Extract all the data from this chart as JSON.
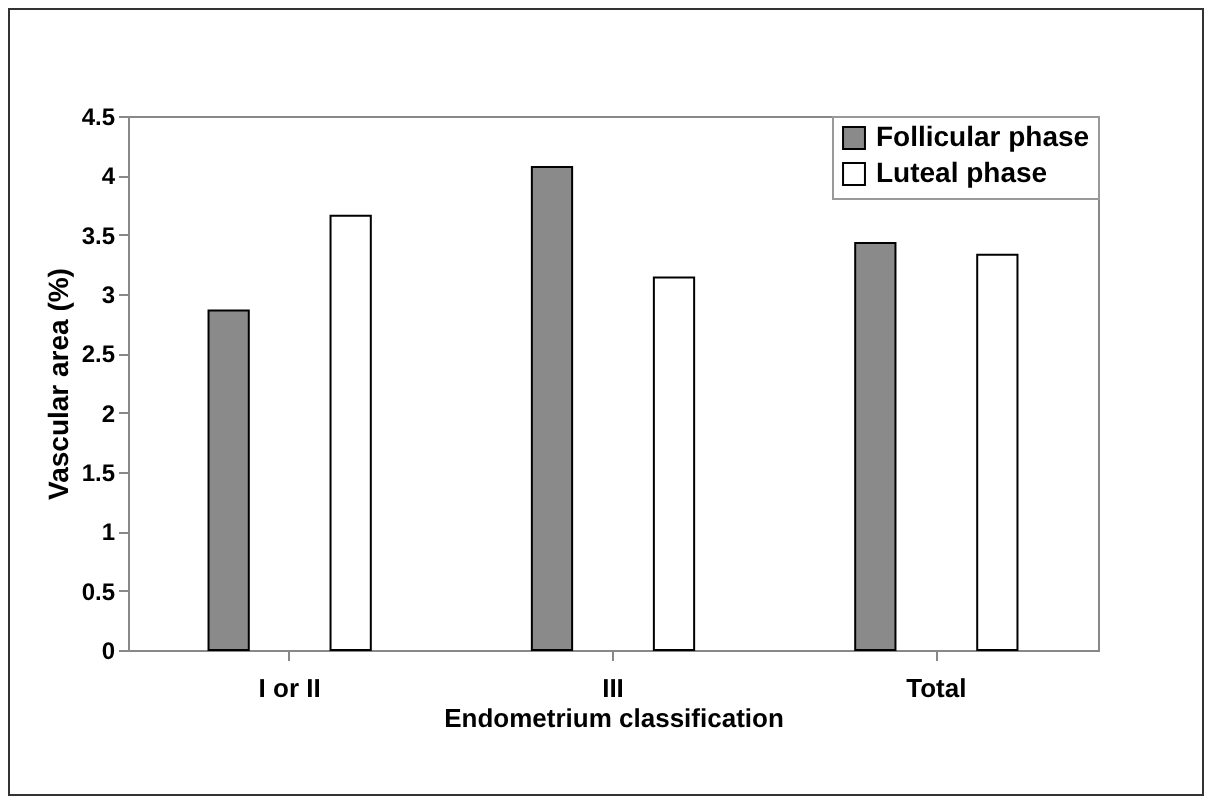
{
  "chart_data": {
    "type": "bar",
    "xlabel": "Endometrium classification",
    "ylabel": "Vascular area (%)",
    "categories": [
      "I or II",
      "III",
      "Total"
    ],
    "series": [
      {
        "name": "Follicular phase",
        "color": "#8a8a8a",
        "values": [
          2.86,
          4.07,
          3.43
        ]
      },
      {
        "name": "Luteal phase",
        "color": "#ffffff",
        "values": [
          3.66,
          3.14,
          3.33
        ]
      }
    ],
    "ylim": [
      0,
      4.5
    ],
    "yticks": [
      0,
      0.5,
      1,
      1.5,
      2,
      2.5,
      3,
      3.5,
      4,
      4.5
    ],
    "grid": false,
    "legend": "top right"
  }
}
